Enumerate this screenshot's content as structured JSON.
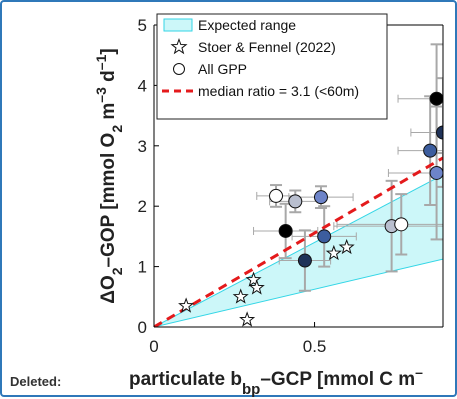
{
  "page": {
    "footer_note": "Deleted:"
  },
  "colors": {
    "expected_fill": "#ccf7f9",
    "expected_line": "#33d6e6",
    "median_line": "#e41a1c",
    "frame": "#2f78b9",
    "axis": "#000000",
    "error_bar": "#a8a8a8"
  },
  "chart_data": {
    "type": "scatter",
    "xlim": [
      0,
      0.9
    ],
    "ylim": [
      0,
      5
    ],
    "x_ticks": [
      0,
      0.5
    ],
    "y_ticks": [
      0,
      1,
      2,
      3,
      4,
      5
    ],
    "xlabel": {
      "main": "particulate b",
      "sub": "bp",
      "rest": "–GCP [mmol C m",
      "sup": "–"
    },
    "ylabel": {
      "pre": "ΔO",
      "s1": "2",
      "mid": "–GOP [mmol O",
      "s2": "2",
      "mid2": " m",
      "sup1": "–3",
      "post": " d",
      "sup2": "–1",
      "end": "]"
    },
    "grid": false,
    "legend_position": "top-right",
    "legend": [
      {
        "name": "Expected range",
        "symbol": "patch"
      },
      {
        "name": "Stoer & Fennel (2022)",
        "symbol": "star"
      },
      {
        "name": "All GPP",
        "symbol": "circle"
      },
      {
        "name": "median ratio = 3.1 (<60m)",
        "symbol": "dashed-line"
      }
    ],
    "expected_range": {
      "x": [
        0,
        0.9
      ],
      "lower_slope": 1.25,
      "upper_slope": 2.8
    },
    "median_line": {
      "x": [
        0,
        0.9
      ],
      "y": [
        0,
        2.8
      ]
    },
    "stoer_fennel": [
      {
        "x": 0.1,
        "y": 0.35
      },
      {
        "x": 0.27,
        "y": 0.5
      },
      {
        "x": 0.29,
        "y": 0.12
      },
      {
        "x": 0.31,
        "y": 0.78
      },
      {
        "x": 0.32,
        "y": 0.65
      },
      {
        "x": 0.56,
        "y": 1.22
      },
      {
        "x": 0.6,
        "y": 1.32
      }
    ],
    "all_gpp": [
      {
        "x": 0.38,
        "y": 2.17,
        "color": "#ffffff",
        "xerr": 0.06,
        "yerr": 0.18
      },
      {
        "x": 0.44,
        "y": 2.08,
        "color": "#b9bfcf",
        "xerr": 0.08,
        "yerr": 0.18
      },
      {
        "x": 0.52,
        "y": 2.15,
        "color": "#6d84c9",
        "xerr": 0.1,
        "yerr": 0.18
      },
      {
        "x": 0.41,
        "y": 1.59,
        "color": "#000000",
        "xerr": 0.1,
        "yerr": 0.45
      },
      {
        "x": 0.53,
        "y": 1.5,
        "color": "#3c5d9e",
        "xerr": 0.1,
        "yerr": 0.5
      },
      {
        "x": 0.47,
        "y": 1.1,
        "color": "#1f3258",
        "xerr": 0.08,
        "yerr": 0.5
      },
      {
        "x": 0.74,
        "y": 1.67,
        "color": "#b9bfcf",
        "xerr": 0.18,
        "yerr": 0.75
      },
      {
        "x": 0.77,
        "y": 1.7,
        "color": "#ffffff",
        "xerr": 0.2,
        "yerr": 0.5
      },
      {
        "x": 0.86,
        "y": 2.92,
        "color": "#3c5d9e",
        "xerr": 0.1,
        "yerr": 0.9
      },
      {
        "x": 0.88,
        "y": 2.55,
        "color": "#6d84c9",
        "xerr": 0.15,
        "yerr": 1.1
      },
      {
        "x": 0.88,
        "y": 3.78,
        "color": "#000000",
        "xerr": 0.12,
        "yerr": 0.9
      },
      {
        "x": 0.9,
        "y": 3.22,
        "color": "#1f3258",
        "xerr": 0.1,
        "yerr": 0.9
      }
    ]
  }
}
